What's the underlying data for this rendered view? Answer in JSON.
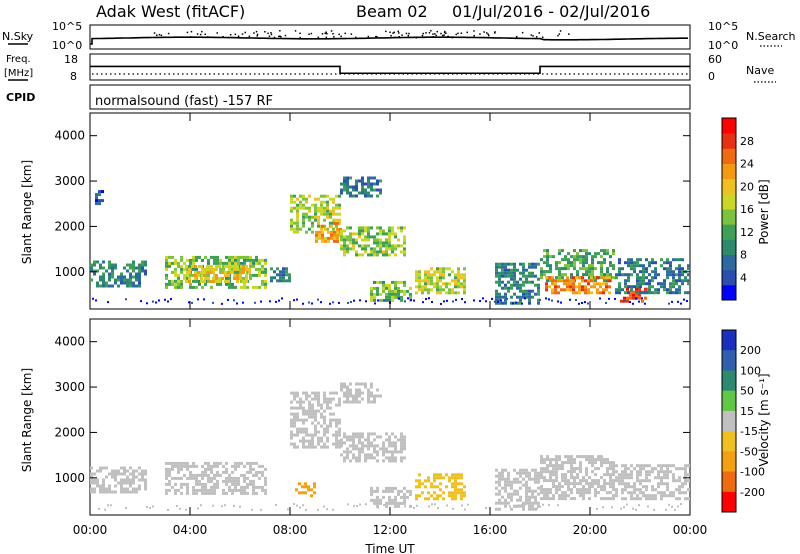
{
  "header": {
    "station": "Adak West (fitACF)",
    "beam": "Beam 02",
    "date_range": "01/Jul/2016 - 02/Jul/2016"
  },
  "status_panels": {
    "nsky_label": "N.Sky",
    "nsearch_label": "N.Search",
    "nsky_ticks": [
      "10^5",
      "10^0"
    ],
    "nsearch_ticks": [
      "10^5",
      "10^0"
    ],
    "freq_label_1": "Freq.",
    "freq_label_2": "[MHz]",
    "freq_ticks": [
      "18",
      "8"
    ],
    "nave_label": "Nave",
    "nave_ticks": [
      "60",
      "0"
    ],
    "cpid_label": "CPID",
    "cpid_text": "normalsound (fast) -157 RF",
    "freq_steps": [
      {
        "t": 0.0,
        "f": 13.2
      },
      {
        "t": 10.0,
        "f": 10.6
      },
      {
        "t": 18.0,
        "f": 13.2
      },
      {
        "t": 24.0,
        "f": 13.2
      }
    ]
  },
  "chart_data": [
    {
      "type": "heatmap",
      "name": "Power",
      "ylabel": "Slant Range [km]",
      "xlabel": "Time UT",
      "x_ticks": [
        "00:00",
        "04:00",
        "08:00",
        "12:00",
        "16:00",
        "20:00",
        "00:00"
      ],
      "y_ticks": [
        "1000",
        "2000",
        "3000",
        "4000"
      ],
      "ylim": [
        180,
        4500
      ],
      "xlim_hours": [
        0,
        24
      ],
      "colorbar": {
        "label": "Power [dB]",
        "ticks": [
          "4",
          "8",
          "12",
          "16",
          "20",
          "24",
          "28"
        ],
        "range": [
          0,
          32
        ],
        "colors": [
          "#0000ff",
          "#2a4fb0",
          "#2c6aa0",
          "#2e8a6e",
          "#3ea054",
          "#7cc23a",
          "#c8d825",
          "#f0c020",
          "#f59a10",
          "#f26a10",
          "#e83010",
          "#ff0000"
        ]
      },
      "echo_regions": [
        {
          "t0": 0.0,
          "t1": 2.2,
          "r0": 700,
          "r1": 1250,
          "level": 9
        },
        {
          "t0": 0.2,
          "t1": 0.5,
          "r0": 2500,
          "r1": 2800,
          "level": 6
        },
        {
          "t0": 3.0,
          "t1": 7.0,
          "r0": 650,
          "r1": 1350,
          "level": 14
        },
        {
          "t0": 3.8,
          "t1": 6.4,
          "r0": 800,
          "r1": 1150,
          "level": 20
        },
        {
          "t0": 7.2,
          "t1": 8.0,
          "r0": 800,
          "r1": 1100,
          "level": 9
        },
        {
          "t0": 8.0,
          "t1": 10.0,
          "r0": 1900,
          "r1": 2700,
          "level": 16
        },
        {
          "t0": 9.0,
          "t1": 10.0,
          "r0": 1650,
          "r1": 2100,
          "level": 22
        },
        {
          "t0": 10.0,
          "t1": 12.6,
          "r0": 1400,
          "r1": 2000,
          "level": 15
        },
        {
          "t0": 10.0,
          "t1": 11.6,
          "r0": 2700,
          "r1": 3100,
          "level": 8
        },
        {
          "t0": 11.2,
          "t1": 12.8,
          "r0": 400,
          "r1": 800,
          "level": 14
        },
        {
          "t0": 13.0,
          "t1": 15.0,
          "r0": 550,
          "r1": 1100,
          "level": 17
        },
        {
          "t0": 16.2,
          "t1": 18.0,
          "r0": 300,
          "r1": 1200,
          "level": 9
        },
        {
          "t0": 18.0,
          "t1": 21.0,
          "r0": 800,
          "r1": 1500,
          "level": 12
        },
        {
          "t0": 18.2,
          "t1": 20.8,
          "r0": 550,
          "r1": 900,
          "level": 24
        },
        {
          "t0": 21.2,
          "t1": 22.4,
          "r0": 350,
          "r1": 650,
          "level": 28
        },
        {
          "t0": 21.0,
          "t1": 24.0,
          "r0": 550,
          "r1": 1300,
          "level": 8
        }
      ]
    },
    {
      "type": "heatmap",
      "name": "Velocity",
      "ylabel": "Slant Range [km]",
      "xlabel": "Time UT",
      "x_ticks": [
        "00:00",
        "04:00",
        "08:00",
        "12:00",
        "16:00",
        "20:00",
        "00:00"
      ],
      "y_ticks": [
        "1000",
        "2000",
        "3000",
        "4000"
      ],
      "ylim": [
        180,
        4500
      ],
      "xlim_hours": [
        0,
        24
      ],
      "colorbar": {
        "label": "Velocity [m s⁻¹]",
        "ticks": [
          "200",
          "100",
          "50",
          "15",
          "-15",
          "-50",
          "-100",
          "-200"
        ],
        "colors": [
          "#1a2fbf",
          "#2f5fb0",
          "#2e8a6e",
          "#5fc846",
          "#c0c0c0",
          "#f0c020",
          "#f5a010",
          "#f06a10",
          "#ff0000"
        ]
      },
      "echo_regions": [
        {
          "t0": 0.0,
          "t1": 2.2,
          "r0": 700,
          "r1": 1250,
          "level": 0
        },
        {
          "t0": 3.0,
          "t1": 7.0,
          "r0": 650,
          "r1": 1350,
          "level": 0
        },
        {
          "t0": 8.0,
          "t1": 10.0,
          "r0": 1700,
          "r1": 2900,
          "level": 0
        },
        {
          "t0": 10.0,
          "t1": 12.6,
          "r0": 1400,
          "r1": 2000,
          "level": 0
        },
        {
          "t0": 10.0,
          "t1": 11.6,
          "r0": 2700,
          "r1": 3100,
          "level": 0
        },
        {
          "t0": 8.2,
          "t1": 9.0,
          "r0": 600,
          "r1": 900,
          "level": -60
        },
        {
          "t0": 11.2,
          "t1": 12.8,
          "r0": 400,
          "r1": 800,
          "level": -10
        },
        {
          "t0": 13.0,
          "t1": 15.0,
          "r0": 550,
          "r1": 1100,
          "level": -40
        },
        {
          "t0": 16.2,
          "t1": 18.0,
          "r0": 300,
          "r1": 1200,
          "level": 0
        },
        {
          "t0": 18.0,
          "t1": 21.0,
          "r0": 550,
          "r1": 1500,
          "level": 0
        },
        {
          "t0": 21.0,
          "t1": 24.0,
          "r0": 550,
          "r1": 1300,
          "level": 0
        }
      ]
    }
  ]
}
